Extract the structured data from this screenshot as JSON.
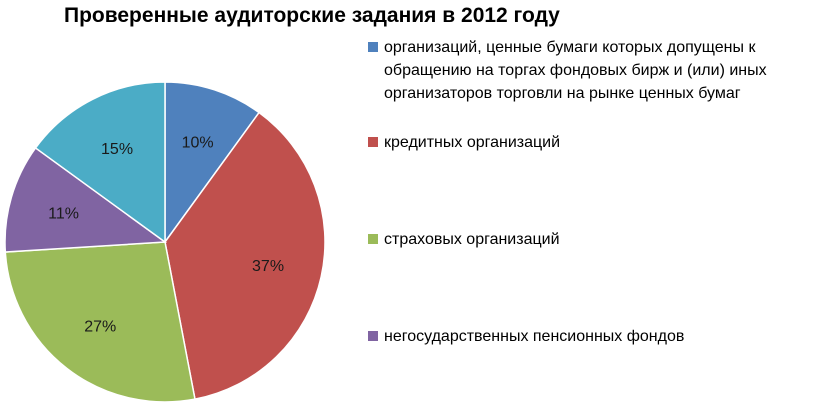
{
  "chart_data": {
    "type": "pie",
    "title": "Проверенные аудиторские задания в 2012 году",
    "slices": [
      {
        "name": "организаций, ценные бумаги которых допущены к обращению на торгах фондовых бирж и (или) иных организаторов торговли на рынке ценных бумаг",
        "value": 10,
        "label": "10%",
        "color": "#4F81BD"
      },
      {
        "name": "кредитных организаций",
        "value": 37,
        "label": "37%",
        "color": "#C0504D"
      },
      {
        "name": "страховых организаций",
        "value": 27,
        "label": "27%",
        "color": "#9BBB59"
      },
      {
        "name": "негосударственных пенсионных фондов",
        "value": 11,
        "label": "11%",
        "color": "#8064A2"
      },
      {
        "name": "",
        "value": 15,
        "label": "15%",
        "color": "#4BACC6"
      }
    ],
    "legend_position": "right"
  }
}
